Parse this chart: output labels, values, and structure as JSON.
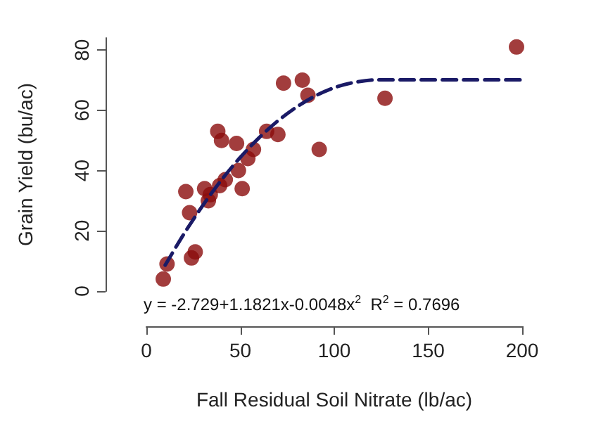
{
  "chart_data": {
    "type": "scatter",
    "xlabel": "Fall Residual Soil Nitrate (lb/ac)",
    "ylabel": "Grain Yield (bu/ac)",
    "annotations": [
      "y = -2.729+1.1821x-0.0048x$^{2}$  R$^{2}$ = 0.7696"
    ],
    "xlim": [
      0,
      200
    ],
    "xticks": [
      0,
      50,
      100,
      150,
      200
    ],
    "ylim": [
      0,
      84
    ],
    "yticks": [
      0,
      20,
      40,
      60,
      80
    ],
    "grid": false,
    "series": [
      {
        "color": "#8b0c0c",
        "marker": "circle",
        "x": [
          9,
          11,
          21,
          23,
          24,
          26,
          31,
          33,
          34,
          38,
          40,
          39,
          42,
          48,
          49,
          51,
          54,
          57,
          64,
          70,
          73,
          83,
          86,
          92,
          127,
          197
        ],
        "values": [
          4,
          9,
          33,
          26,
          11,
          13,
          34,
          30,
          32,
          53,
          50,
          35,
          37,
          49,
          40,
          34,
          44,
          47,
          53,
          52,
          69,
          70,
          65,
          47,
          64,
          81
        ]
      },
      {
        "type": "line",
        "color": "#1a1a66",
        "line_style": "dashed",
        "marker": "none",
        "x": [
          10,
          20,
          30,
          40,
          50,
          60,
          70,
          80,
          90,
          100,
          110,
          123,
          200
        ],
        "values": [
          8.6,
          19.0,
          28.4,
          36.9,
          44.4,
          50.9,
          56.5,
          61.1,
          64.8,
          67.5,
          69.2,
          70.1,
          70.1
        ]
      }
    ]
  }
}
